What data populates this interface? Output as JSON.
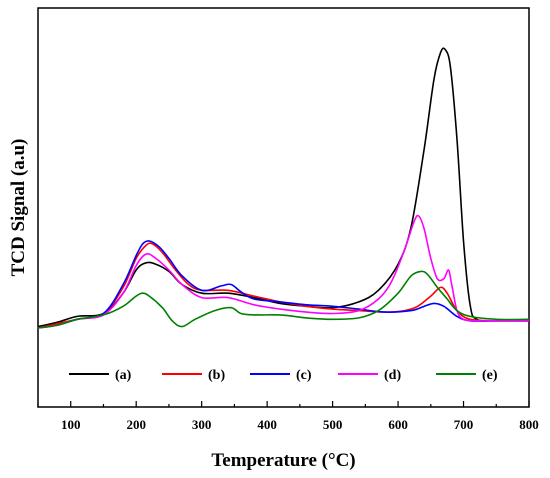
{
  "chart_data": {
    "type": "line",
    "xlabel": "Temperature (°C)",
    "ylabel": "TCD Signal (a.u)",
    "xlim": [
      50,
      800
    ],
    "xticks": [
      100,
      200,
      300,
      400,
      500,
      600,
      700,
      800
    ],
    "ylim": [
      0,
      100
    ],
    "yticks_shown": false,
    "grid": false,
    "legend_position": "bottom inside plot",
    "series": [
      {
        "name": "(a)",
        "color": "#000000",
        "x": [
          50,
          80,
          110,
          150,
          180,
          200,
          215,
          230,
          250,
          270,
          300,
          340,
          380,
          420,
          460,
          500,
          540,
          570,
          600,
          620,
          640,
          655,
          665,
          672,
          680,
          690,
          700,
          710,
          720,
          750,
          800
        ],
        "y": [
          0.5,
          2,
          4,
          5,
          12,
          20,
          22.5,
          22,
          19.5,
          15,
          12,
          12,
          10.5,
          8.5,
          7.5,
          7,
          9,
          13,
          22,
          35,
          62,
          86,
          95,
          96,
          90,
          65,
          30,
          8,
          3,
          2.5,
          2.5
        ]
      },
      {
        "name": "(b)",
        "color": "#ff0000",
        "x": [
          50,
          80,
          110,
          150,
          180,
          200,
          215,
          225,
          240,
          260,
          280,
          300,
          340,
          380,
          420,
          460,
          500,
          540,
          580,
          610,
          630,
          650,
          665,
          675,
          690,
          710,
          750,
          800
        ],
        "y": [
          0,
          1.5,
          3,
          5,
          14,
          24,
          28.5,
          29,
          26,
          20,
          15,
          13,
          13,
          11,
          9,
          7.5,
          6.5,
          6,
          5.5,
          6,
          7.5,
          11,
          14,
          12,
          6,
          3,
          2.5,
          2.5
        ]
      },
      {
        "name": "(c)",
        "color": "#0000ff",
        "x": [
          50,
          80,
          110,
          150,
          180,
          200,
          210,
          220,
          235,
          250,
          270,
          300,
          330,
          345,
          360,
          380,
          420,
          460,
          500,
          540,
          580,
          620,
          640,
          655,
          670,
          690,
          710,
          750,
          800
        ],
        "y": [
          0,
          1,
          3,
          5,
          15,
          25,
          29,
          30,
          28,
          24,
          18,
          13,
          14.5,
          15,
          12.5,
          10,
          9,
          8,
          7.5,
          6.5,
          5.5,
          6,
          7.5,
          8.5,
          7.5,
          4,
          2.5,
          2.5,
          2.5
        ]
      },
      {
        "name": "(d)",
        "color": "#ff00ff",
        "x": [
          50,
          80,
          110,
          150,
          180,
          200,
          215,
          230,
          250,
          270,
          300,
          340,
          380,
          420,
          460,
          500,
          540,
          570,
          590,
          610,
          625,
          632,
          640,
          650,
          660,
          670,
          677,
          682,
          690,
          700,
          720,
          750,
          800
        ],
        "y": [
          0,
          1,
          3,
          4.5,
          12,
          21.5,
          25.5,
          24,
          20,
          15,
          10.5,
          10.5,
          8,
          6.5,
          5.5,
          5,
          6,
          10,
          16,
          27,
          37,
          38.5,
          34,
          24,
          17,
          17,
          20,
          15,
          6,
          3,
          2.5,
          2.5,
          2.5
        ]
      },
      {
        "name": "(e)",
        "color": "#008000",
        "x": [
          50,
          80,
          110,
          150,
          180,
          200,
          210,
          220,
          240,
          255,
          270,
          290,
          320,
          345,
          360,
          380,
          420,
          460,
          500,
          540,
          570,
          600,
          620,
          635,
          645,
          660,
          675,
          690,
          710,
          750,
          800
        ],
        "y": [
          0,
          1,
          3,
          4.5,
          7.5,
          11,
          12,
          11,
          7,
          2.5,
          0.5,
          3,
          6,
          7,
          5,
          4.5,
          4.5,
          3.5,
          3,
          3.5,
          6,
          12,
          18,
          19.5,
          18.5,
          14,
          10,
          6,
          4,
          3,
          3
        ]
      }
    ]
  }
}
